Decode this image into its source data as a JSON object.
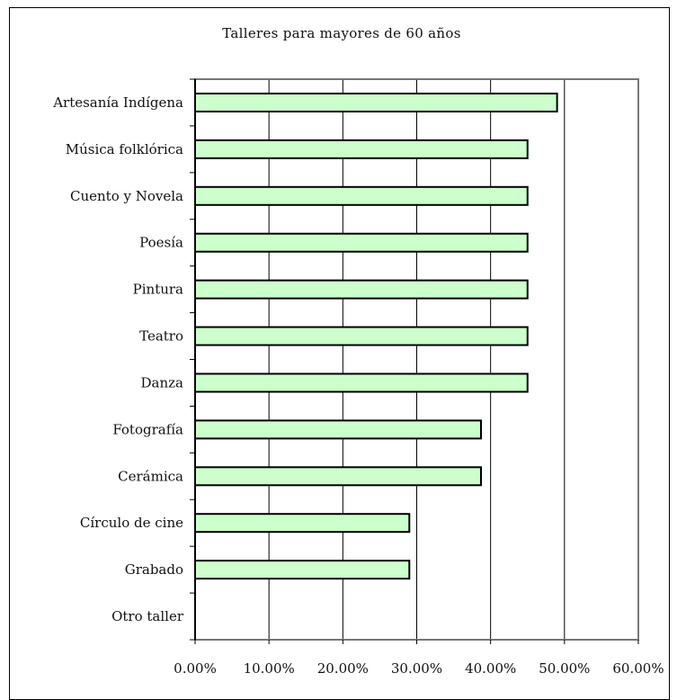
{
  "chart_data": {
    "type": "bar",
    "orientation": "horizontal",
    "title": "Talleres para mayores de 60 años",
    "categories": [
      "Artesanía Indígena",
      "Música folklórica",
      "Cuento y Novela",
      "Poesía",
      "Pintura",
      "Teatro",
      "Danza",
      "Fotografía",
      "Cerámica",
      "Círculo de cine",
      "Grabado",
      "Otro taller"
    ],
    "values": [
      0.49,
      0.45,
      0.45,
      0.45,
      0.45,
      0.45,
      0.45,
      0.387,
      0.387,
      0.29,
      0.29,
      0.0
    ],
    "xlim": [
      0,
      0.6
    ],
    "xticks": [
      "0.00%",
      "10.00%",
      "20.00%",
      "30.00%",
      "40.00%",
      "50.00%",
      "60.00%"
    ],
    "grid": "vertical",
    "legend": "none",
    "bar_color": "#ccffcc",
    "bar_edge_color": "#000000"
  }
}
